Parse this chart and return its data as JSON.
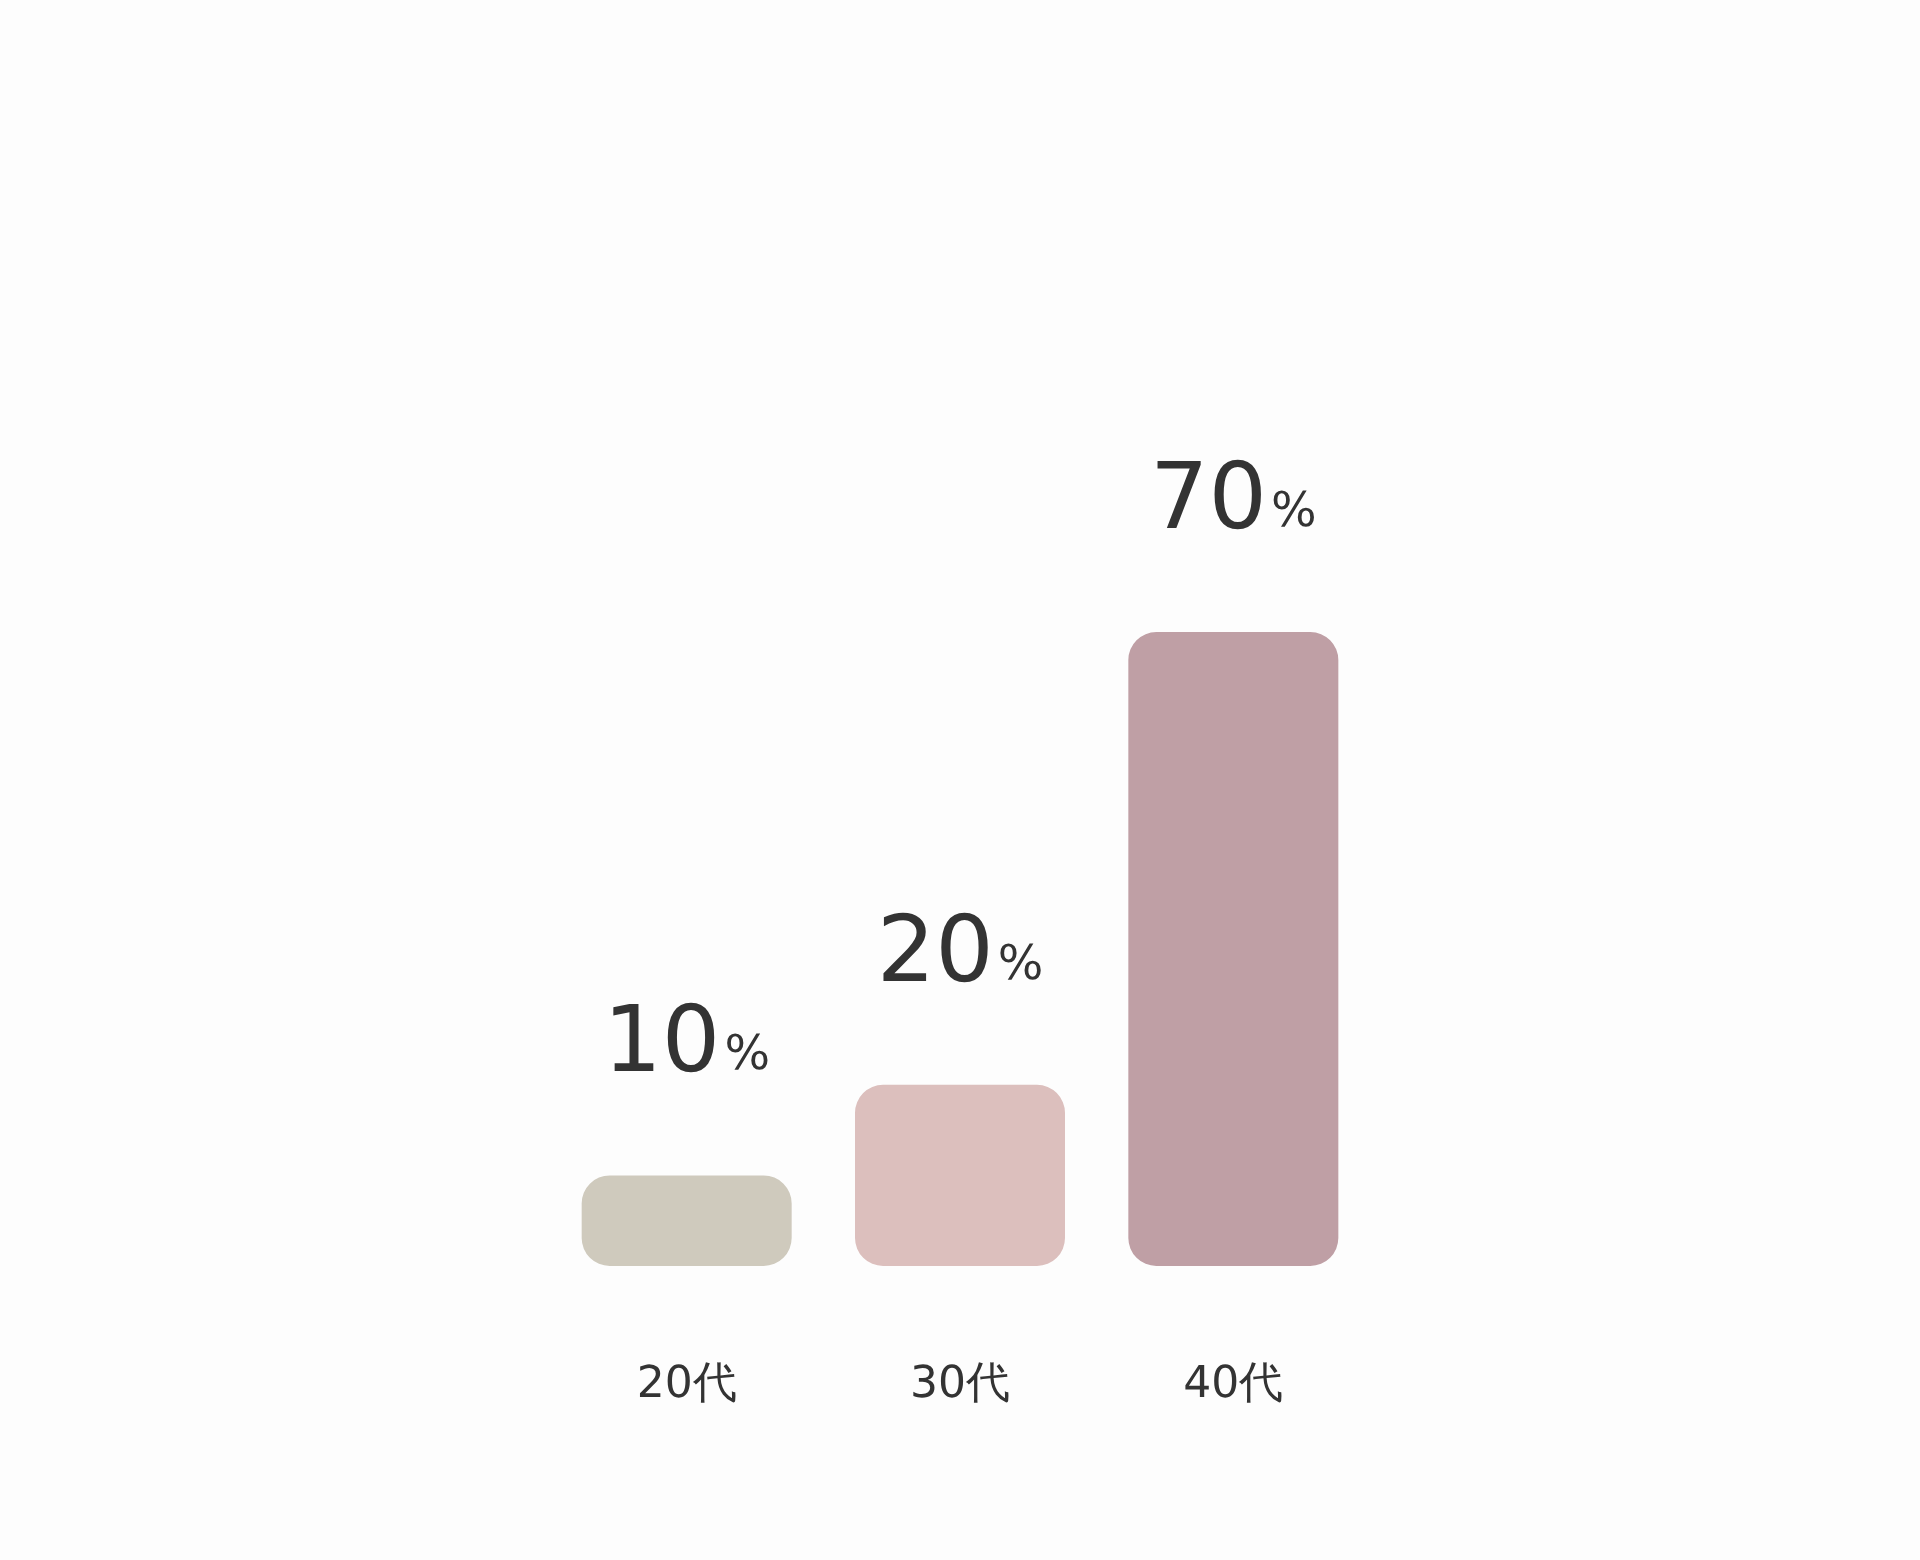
{
  "chart_data": {
    "type": "bar",
    "categories": [
      "20代",
      "30代",
      "40代"
    ],
    "values": [
      10,
      20,
      70
    ],
    "colors": [
      "#cfcabd",
      "#dcbfbd",
      "#bf9fa5"
    ],
    "value_labels": [
      "10%",
      "20%",
      "70%"
    ]
  }
}
